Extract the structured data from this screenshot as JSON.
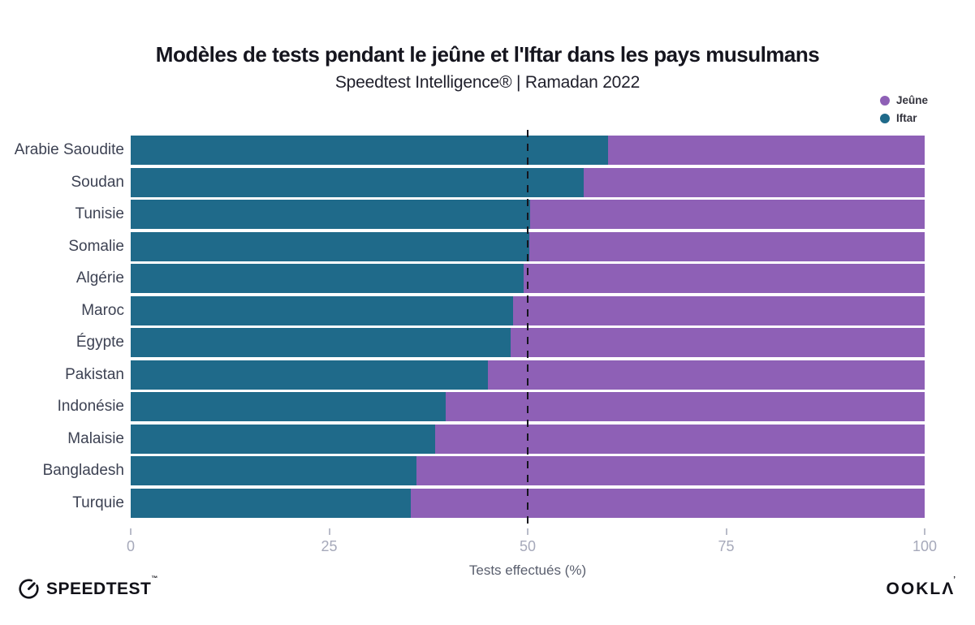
{
  "header": {
    "title": "Modèles de tests pendant le jeûne et l'Iftar dans les pays musulmans",
    "subtitle": "Speedtest Intelligence® | Ramadan 2022"
  },
  "legend": [
    {
      "label": "Jeûne",
      "color": "#8e60b6"
    },
    {
      "label": "Iftar",
      "color": "#1f6a8a"
    }
  ],
  "chart_data": {
    "type": "bar",
    "orientation": "horizontal",
    "stacked": true,
    "categories": [
      "Arabie Saoudite",
      "Soudan",
      "Tunisie",
      "Somalie",
      "Algérie",
      "Maroc",
      "Égypte",
      "Pakistan",
      "Indonésie",
      "Malaisie",
      "Bangladesh",
      "Turquie"
    ],
    "series": [
      {
        "name": "Iftar",
        "color": "#1f6a8a",
        "values": [
          60.1,
          57.1,
          50.3,
          50.2,
          49.5,
          48.2,
          47.9,
          45.0,
          39.7,
          38.3,
          36.0,
          35.3
        ]
      },
      {
        "name": "Jeûne",
        "color": "#8e60b6",
        "values": [
          39.9,
          42.9,
          49.7,
          49.8,
          50.5,
          51.8,
          52.1,
          55.0,
          60.3,
          61.7,
          64.0,
          64.7
        ]
      }
    ],
    "xlabel": "Tests effectués (%)",
    "x_ticks": [
      0,
      25,
      50,
      75,
      100
    ],
    "xlim": [
      0,
      100
    ],
    "reference_line_x": 50,
    "grid": false,
    "legend_position": "top-right"
  },
  "colors": {
    "iftar": "#1f6a8a",
    "jeune": "#8e60b6",
    "reference_line": "#15151e",
    "tick_label": "#a6a9ba",
    "category_label": "#3d4253"
  },
  "footer": {
    "speedtest_word": "SPEEDTEST",
    "speedtest_tm": "™",
    "ookla_word": "OOKLΛ",
    "ookla_tm": "’"
  }
}
